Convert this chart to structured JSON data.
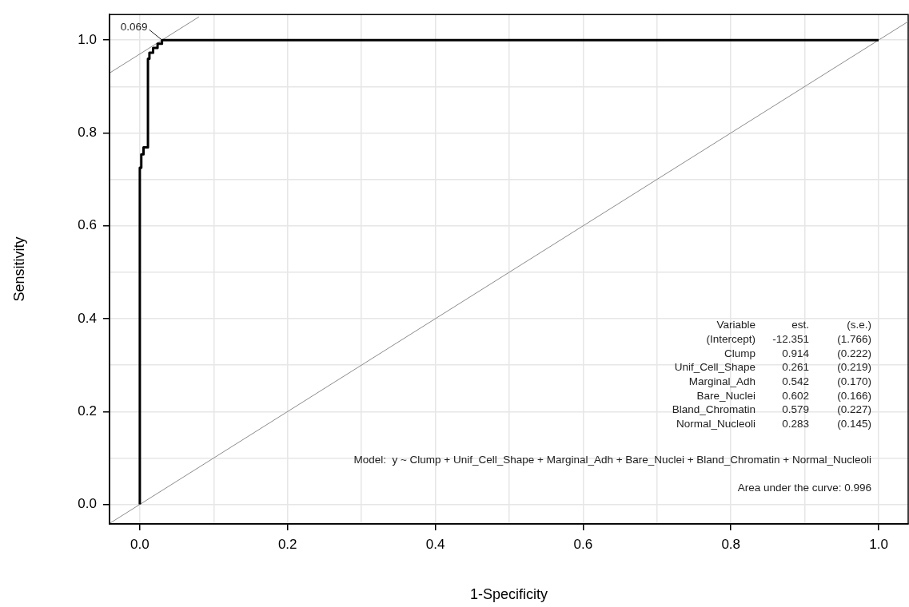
{
  "chart_data": {
    "type": "line",
    "xlabel": "1-Specificity",
    "ylabel": "Sensitivity",
    "xlim": [
      -0.041,
      1.04
    ],
    "ylim": [
      -0.042,
      1.055
    ],
    "xticks": [
      {
        "value": 0,
        "label": "0.0"
      },
      {
        "value": 0.1,
        "label": null
      },
      {
        "value": 0.2,
        "label": "0.2"
      },
      {
        "value": 0.3,
        "label": null
      },
      {
        "value": 0.4,
        "label": "0.4"
      },
      {
        "value": 0.5,
        "label": null
      },
      {
        "value": 0.6,
        "label": "0.6"
      },
      {
        "value": 0.7,
        "label": null
      },
      {
        "value": 0.8,
        "label": "0.8"
      },
      {
        "value": 0.9,
        "label": null
      },
      {
        "value": 1,
        "label": "1.0"
      }
    ],
    "yticks": [
      {
        "value": 0,
        "label": "0.0"
      },
      {
        "value": 0.1,
        "label": null
      },
      {
        "value": 0.2,
        "label": "0.2"
      },
      {
        "value": 0.3,
        "label": null
      },
      {
        "value": 0.4,
        "label": "0.4"
      },
      {
        "value": 0.5,
        "label": null
      },
      {
        "value": 0.6,
        "label": "0.6"
      },
      {
        "value": 0.7,
        "label": null
      },
      {
        "value": 0.8,
        "label": "0.8"
      },
      {
        "value": 0.9,
        "label": null
      },
      {
        "value": 1,
        "label": "1.0"
      }
    ],
    "grid": true,
    "legend": false,
    "marker": "none",
    "line_style": "solid",
    "series": [
      {
        "color": "#000000",
        "x": [
          0,
          0,
          0.002,
          0.002,
          0.005,
          0.005,
          0.011,
          0.011,
          0.013,
          0.013,
          0.018,
          0.018,
          0.024,
          0.024,
          0.03,
          0.03,
          1
        ],
        "values": [
          0,
          0.725,
          0.725,
          0.754,
          0.754,
          0.769,
          0.769,
          0.96,
          0.96,
          0.973,
          0.973,
          0.983,
          0.983,
          0.992,
          0.992,
          1,
          1
        ]
      },
      {
        "color": "#8c8c8c",
        "x": [
          -0.04,
          1.04
        ],
        "values": [
          -0.04,
          1.04
        ]
      },
      {
        "color": "#8c8c8c",
        "x": [
          -0.04,
          0.08
        ],
        "values": [
          0.93,
          1.05
        ]
      }
    ],
    "annotations": [
      {
        "text": "0.069",
        "x": 0.03,
        "y": 1
      },
      "Variable",
      "est.",
      "(s.e.)",
      "(Intercept)",
      "-12.351",
      "(1.766)",
      "Clump",
      "0.914",
      "(0.222)",
      "Unif_Cell_Shape",
      "0.261",
      "(0.219)",
      "Marginal_Adh",
      "0.542",
      "(0.170)",
      "Bare_Nuclei",
      "0.602",
      "(0.166)",
      "Bland_Chromatin",
      "0.579",
      "(0.227)",
      "Normal_Nucleoli",
      "0.283",
      "(0.145)",
      "Model:  y ~ Clump + Unif_Cell_Shape + Marginal_Adh + Bare_Nuclei + Bland_Chromatin + Normal_Nucleoli",
      "Area under the curve: 0.996"
    ]
  }
}
